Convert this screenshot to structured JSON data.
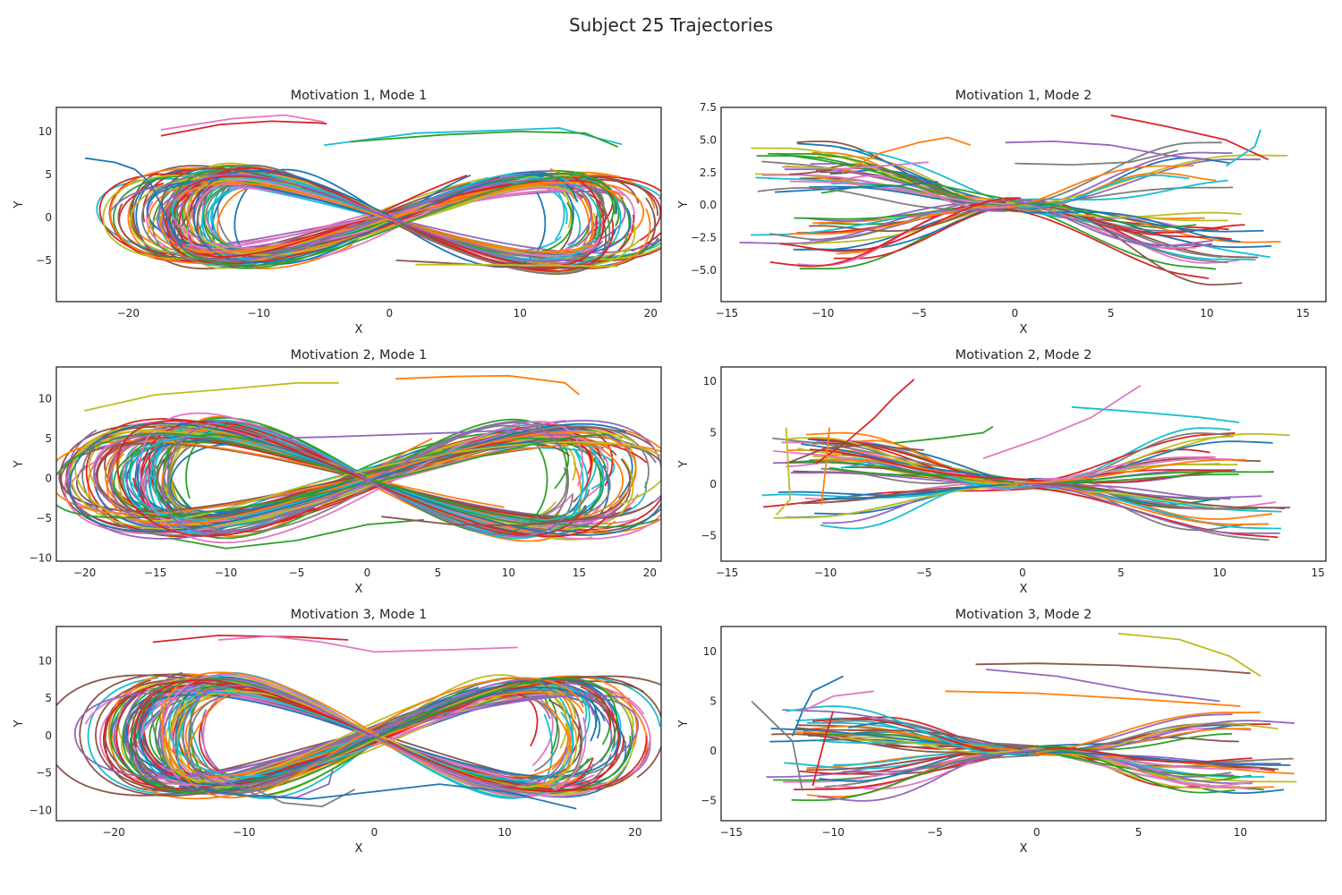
{
  "figure": {
    "title": "Subject 25 Trajectories"
  },
  "colors": [
    "#1f77b4",
    "#ff7f0e",
    "#2ca02c",
    "#d62728",
    "#9467bd",
    "#8c564b",
    "#e377c2",
    "#7f7f7f",
    "#bcbd22",
    "#17becf"
  ],
  "chart_data": [
    {
      "type": "line",
      "title": "Motivation 1, Mode 1",
      "xlabel": "X",
      "ylabel": "Y",
      "xlim": [
        -25.5,
        20.8
      ],
      "ylim": [
        -9.8,
        12.8
      ],
      "xticks": [
        -20,
        -10,
        0,
        10,
        20
      ],
      "yticks": [
        -5,
        0,
        5,
        10
      ],
      "pattern": "figure8",
      "mode": 1,
      "ntraj": 85,
      "ampX": [
        14,
        19
      ],
      "ampY": [
        5,
        8
      ],
      "series": [
        {
          "x": [
            -23.3,
            -21.0,
            -19.5,
            -18.3,
            -17.5,
            -16.6,
            -15.9
          ],
          "y": [
            6.9,
            6.4,
            5.6,
            4.0,
            1.5,
            -1.5,
            -3.5
          ]
        },
        {
          "x": [
            -17.5,
            -13.0,
            -9.0,
            -5.5,
            -4.8
          ],
          "y": [
            9.5,
            10.8,
            11.2,
            11.0,
            10.9
          ]
        },
        {
          "x": [
            -17.5,
            -12.0,
            -8.0,
            -5.0
          ],
          "y": [
            10.2,
            11.5,
            11.9,
            11.1
          ]
        },
        {
          "x": [
            -5.0,
            2.0,
            8.0,
            13.0,
            16.5,
            17.8
          ],
          "y": [
            8.4,
            9.8,
            10.1,
            10.4,
            9.0,
            8.5
          ]
        },
        {
          "x": [
            -3.0,
            4.0,
            10.0,
            15.0,
            17.5
          ],
          "y": [
            8.8,
            9.6,
            10.0,
            9.8,
            8.2
          ]
        },
        {
          "x": [
            0.5,
            3.0,
            6.5,
            10.0,
            15.2
          ],
          "y": [
            -5.0,
            -5.2,
            -5.5,
            -5.8,
            -5.9
          ]
        },
        {
          "x": [
            2.0,
            7.0,
            12.0,
            17.5
          ],
          "y": [
            -5.5,
            -5.5,
            -5.6,
            -5.7
          ]
        }
      ]
    },
    {
      "type": "line",
      "title": "Motivation 1, Mode 2",
      "xlabel": "X",
      "ylabel": "Y",
      "xlim": [
        -15.3,
        16.2
      ],
      "ylim": [
        -7.4,
        7.5
      ],
      "xticks": [
        -15,
        -10,
        -5,
        0,
        5,
        10,
        15
      ],
      "yticks": [
        -5.0,
        -2.5,
        0.0,
        2.5,
        5.0,
        7.5
      ],
      "pattern": "sigmoid",
      "mode": 2,
      "ntraj": 85,
      "ampX": [
        10.5,
        14
      ],
      "ampY": [
        4.2,
        6.5
      ],
      "series": [
        {
          "x": [
            -9.0,
            -7.0,
            -5.0,
            -3.5,
            -2.3
          ],
          "y": [
            2.5,
            4.0,
            4.8,
            5.2,
            4.6
          ]
        },
        {
          "x": [
            -0.5,
            2.0,
            5.0,
            8.0,
            10.0
          ],
          "y": [
            4.8,
            4.9,
            4.6,
            3.8,
            3.5
          ]
        },
        {
          "x": [
            0.0,
            3.0,
            6.0,
            8.5
          ],
          "y": [
            3.2,
            3.1,
            3.3,
            4.2
          ]
        },
        {
          "x": [
            -12.5,
            -9.0,
            -6.0,
            -4.0
          ],
          "y": [
            1.0,
            1.3,
            1.5,
            1.8
          ]
        },
        {
          "x": [
            5.0,
            8.0,
            11.0,
            13.2
          ],
          "y": [
            6.9,
            6.0,
            5.0,
            3.5
          ]
        },
        {
          "x": [
            -9.5,
            -7.0,
            -4.5
          ],
          "y": [
            2.7,
            3.0,
            3.3
          ]
        },
        {
          "x": [
            11.0,
            12.5,
            12.8
          ],
          "y": [
            3.0,
            4.5,
            5.8
          ]
        }
      ]
    },
    {
      "type": "line",
      "title": "Motivation 2, Mode 1",
      "xlabel": "X",
      "ylabel": "Y",
      "xlim": [
        -22.0,
        20.8
      ],
      "ylim": [
        -10.4,
        14.0
      ],
      "xticks": [
        -20,
        -15,
        -10,
        -5,
        0,
        5,
        10,
        15,
        20
      ],
      "yticks": [
        -10,
        -5,
        0,
        5,
        10
      ],
      "pattern": "figure8",
      "mode": 1,
      "ntraj": 85,
      "ampX": [
        15,
        20
      ],
      "ampY": [
        6,
        10
      ],
      "series": [
        {
          "x": [
            -14.0,
            -10.0,
            -5.0,
            0.0,
            4.0
          ],
          "y": [
            -7.5,
            -8.8,
            -7.8,
            -5.8,
            -5.2
          ]
        },
        {
          "x": [
            1.0,
            6.0,
            11.0,
            14.5,
            15.5
          ],
          "y": [
            -4.8,
            -5.8,
            -5.9,
            -5.2,
            -3.8
          ]
        },
        {
          "x": [
            -20.0,
            -15.0,
            -10.0,
            -5.0,
            -2.0
          ],
          "y": [
            8.5,
            10.5,
            11.2,
            12.0,
            12.0
          ]
        },
        {
          "x": [
            2.0,
            6.0,
            10.0,
            14.0,
            15.0
          ],
          "y": [
            12.5,
            12.8,
            12.9,
            12.0,
            10.5
          ]
        },
        {
          "x": [
            -8.0,
            -3.0,
            2.0,
            7.0,
            12.0
          ],
          "y": [
            5.0,
            5.2,
            5.5,
            5.8,
            6.2
          ]
        }
      ]
    },
    {
      "type": "line",
      "title": "Motivation 2, Mode 2",
      "xlabel": "X",
      "ylabel": "Y",
      "xlim": [
        -15.3,
        15.4
      ],
      "ylim": [
        -7.5,
        11.4
      ],
      "xticks": [
        -15,
        -10,
        -5,
        0,
        5,
        10,
        15
      ],
      "yticks": [
        -5,
        0,
        5,
        10
      ],
      "pattern": "sigmoid",
      "mode": 2,
      "ntraj": 85,
      "ampX": [
        10.5,
        13.8
      ],
      "ampY": [
        4.0,
        6.0
      ],
      "series": [
        {
          "x": [
            -10.5,
            -9.0,
            -7.5,
            -6.5,
            -5.5
          ],
          "y": [
            2.0,
            4.0,
            6.5,
            8.5,
            10.2
          ]
        },
        {
          "x": [
            -2.0,
            1.0,
            3.5,
            5.5,
            6.0
          ],
          "y": [
            2.5,
            4.5,
            6.5,
            9.0,
            9.6
          ]
        },
        {
          "x": [
            2.5,
            6.0,
            9.0,
            11.0
          ],
          "y": [
            7.5,
            7.0,
            6.5,
            6.0
          ]
        },
        {
          "x": [
            -6.5,
            -4.0,
            -2.0,
            -1.5
          ],
          "y": [
            4.0,
            4.5,
            5.0,
            5.6
          ]
        },
        {
          "x": [
            -12.0,
            -10.0,
            -8.0,
            -5.0
          ],
          "y": [
            2.0,
            3.5,
            3.8,
            3.3
          ]
        },
        {
          "x": [
            -12.5,
            -11.8,
            -12.0
          ],
          "y": [
            -3.0,
            -1.5,
            5.5
          ]
        },
        {
          "x": [
            -10.2,
            -10.0,
            -9.8
          ],
          "y": [
            -2.0,
            1.5,
            5.5
          ]
        }
      ]
    },
    {
      "type": "line",
      "title": "Motivation 3, Mode 1",
      "xlabel": "X",
      "ylabel": "Y",
      "xlim": [
        -24.4,
        22.0
      ],
      "ylim": [
        -11.4,
        14.6
      ],
      "xticks": [
        -20,
        -10,
        0,
        10,
        20
      ],
      "yticks": [
        -10,
        -5,
        0,
        5,
        10
      ],
      "pattern": "figure8",
      "mode": 1,
      "ntraj": 85,
      "ampX": [
        15,
        21
      ],
      "ampY": [
        7,
        11
      ],
      "series": [
        {
          "x": [
            -12.0,
            -9.0,
            -6.0,
            -3.5,
            -3.2
          ],
          "y": [
            -5.5,
            -8.0,
            -8.3,
            -6.5,
            -4.5
          ]
        },
        {
          "x": [
            -10.0,
            -7.0,
            -4.0,
            -1.5
          ],
          "y": [
            -6.5,
            -9.0,
            -9.5,
            -7.2
          ]
        },
        {
          "x": [
            -15.0,
            -10.0,
            -5.0,
            0.0,
            5.0,
            10.0,
            15.5
          ],
          "y": [
            -6.8,
            -8.0,
            -8.5,
            -7.5,
            -6.5,
            -7.5,
            -9.8
          ]
        },
        {
          "x": [
            -17.0,
            -12.0,
            -6.0,
            -2.0
          ],
          "y": [
            12.5,
            13.4,
            13.2,
            12.8
          ]
        },
        {
          "x": [
            -12.0,
            -8.0,
            -4.0,
            0.0,
            6.0,
            11.0
          ],
          "y": [
            12.8,
            13.3,
            12.5,
            11.2,
            11.5,
            11.8
          ]
        }
      ]
    },
    {
      "type": "line",
      "title": "Motivation 3, Mode 2",
      "xlabel": "X",
      "ylabel": "Y",
      "xlim": [
        -15.5,
        14.2
      ],
      "ylim": [
        -7.0,
        12.5
      ],
      "xticks": [
        -15,
        -10,
        -5,
        0,
        5,
        10
      ],
      "yticks": [
        -5,
        0,
        5,
        10
      ],
      "pattern": "sigmoid",
      "mode": 2,
      "ntraj": 85,
      "ampX": [
        10.5,
        13
      ],
      "ampY": [
        4.0,
        6.0
      ],
      "series": [
        {
          "x": [
            -3.0,
            0.0,
            4.0,
            8.0,
            10.5
          ],
          "y": [
            8.7,
            8.8,
            8.6,
            8.2,
            7.8
          ]
        },
        {
          "x": [
            4.0,
            7.0,
            9.5,
            11.0
          ],
          "y": [
            11.8,
            11.2,
            9.5,
            7.5
          ]
        },
        {
          "x": [
            -4.5,
            0.0,
            5.0,
            10.0
          ],
          "y": [
            6.0,
            5.8,
            5.2,
            4.5
          ]
        },
        {
          "x": [
            -2.5,
            1.0,
            5.0,
            9.0
          ],
          "y": [
            8.2,
            7.5,
            6.0,
            5.0
          ]
        },
        {
          "x": [
            -14.0,
            -13.0,
            -12.0,
            -11.5
          ],
          "y": [
            5.0,
            3.0,
            1.0,
            -4.0
          ]
        },
        {
          "x": [
            -12.0,
            -11.5,
            -11.0,
            -9.5
          ],
          "y": [
            1.5,
            4.0,
            6.0,
            7.5
          ]
        },
        {
          "x": [
            -11.0,
            -10.5,
            -10.0
          ],
          "y": [
            -3.5,
            0.5,
            4.0
          ]
        },
        {
          "x": [
            -11.5,
            -10.0,
            -8.0
          ],
          "y": [
            4.0,
            5.5,
            6.0
          ]
        }
      ]
    }
  ]
}
